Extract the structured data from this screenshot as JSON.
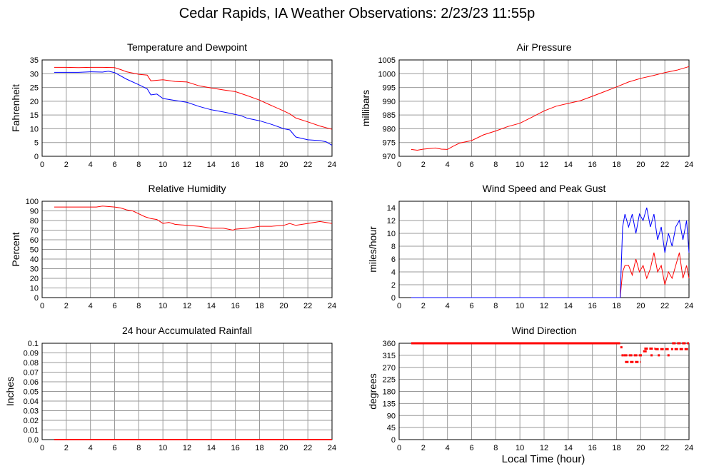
{
  "page": {
    "title": "Cedar Rapids, IA Weather Observations: 2/23/23 11:55p",
    "xlabel": "Local Time (hour)"
  },
  "colors": {
    "red": "#ff0000",
    "blue": "#0000ff",
    "grid": "#9a9a9a"
  },
  "chart_data": [
    {
      "id": "temp",
      "type": "line",
      "title": "Temperature and Dewpoint",
      "ylabel": "Fahrenheit",
      "xlim": [
        0,
        24
      ],
      "ylim": [
        0,
        35
      ],
      "xticks": [
        0,
        2,
        4,
        6,
        8,
        10,
        12,
        14,
        16,
        18,
        20,
        22,
        24
      ],
      "yticks": [
        0,
        5,
        10,
        15,
        20,
        25,
        30,
        35
      ],
      "series": [
        {
          "color": "#ff0000",
          "x": [
            1,
            2,
            3,
            4,
            5,
            6,
            6.5,
            7,
            8,
            8.7,
            9,
            9.5,
            10,
            11,
            12,
            13,
            14,
            15,
            16,
            17,
            18,
            19,
            20,
            20.5,
            21,
            22,
            23,
            24
          ],
          "y": [
            32.3,
            32.3,
            32.2,
            32.3,
            32.3,
            32.2,
            31.5,
            30.7,
            29.8,
            29.5,
            27.4,
            27.6,
            27.8,
            27.2,
            27.0,
            25.6,
            24.8,
            24.1,
            23.5,
            22.0,
            20.4,
            18.4,
            16.5,
            15.4,
            13.9,
            12.5,
            11.0,
            9.8
          ]
        },
        {
          "color": "#0000ff",
          "x": [
            1,
            2,
            3,
            4,
            5,
            5.5,
            6,
            7,
            8,
            8.7,
            9,
            9.5,
            10,
            11,
            12,
            13,
            14,
            15,
            16,
            16.5,
            17,
            18,
            19,
            20,
            20.5,
            21,
            22,
            23,
            23.5,
            24
          ],
          "y": [
            30.5,
            30.5,
            30.5,
            30.7,
            30.6,
            30.9,
            30.4,
            28.0,
            26.0,
            24.5,
            22.3,
            22.6,
            21.0,
            20.3,
            19.6,
            18.1,
            16.9,
            16.1,
            15.2,
            14.7,
            13.8,
            12.9,
            11.6,
            10.0,
            9.6,
            7.0,
            6.0,
            5.7,
            5.3,
            4.0
          ]
        }
      ]
    },
    {
      "id": "pressure",
      "type": "line",
      "title": "Air Pressure",
      "ylabel": "millibars",
      "xlim": [
        0,
        24
      ],
      "ylim": [
        970,
        1005
      ],
      "xticks": [
        0,
        2,
        4,
        6,
        8,
        10,
        12,
        14,
        16,
        18,
        20,
        22,
        24
      ],
      "yticks": [
        970,
        975,
        980,
        985,
        990,
        995,
        1000,
        1005
      ],
      "series": [
        {
          "color": "#ff0000",
          "x": [
            1,
            1.5,
            2,
            3,
            3.5,
            4,
            4.5,
            5,
            6,
            7,
            8,
            9,
            10,
            11,
            12,
            13,
            14,
            15,
            16,
            17,
            18,
            19,
            20,
            21,
            22,
            23,
            24
          ],
          "y": [
            972.5,
            972.2,
            972.6,
            973.0,
            972.6,
            972.5,
            973.7,
            974.8,
            975.7,
            977.8,
            979.2,
            980.8,
            982.0,
            984.2,
            986.5,
            988.2,
            989.2,
            990.2,
            991.8,
            993.5,
            995.2,
            997.0,
            998.3,
            999.3,
            1000.4,
            1001.3,
            1002.6
          ]
        }
      ]
    },
    {
      "id": "rh",
      "type": "line",
      "title": "Relative Humidity",
      "ylabel": "Percent",
      "xlim": [
        0,
        24
      ],
      "ylim": [
        0,
        100
      ],
      "xticks": [
        0,
        2,
        4,
        6,
        8,
        10,
        12,
        14,
        16,
        18,
        20,
        22,
        24
      ],
      "yticks": [
        0,
        10,
        20,
        30,
        40,
        50,
        60,
        70,
        80,
        90,
        100
      ],
      "series": [
        {
          "color": "#ff0000",
          "x": [
            1,
            3,
            4.5,
            5,
            6,
            6.5,
            7,
            7.5,
            8,
            8.5,
            9,
            9.5,
            10,
            10.5,
            11,
            12,
            13,
            14,
            15,
            15.8,
            16,
            17,
            18,
            19,
            20,
            20.5,
            21,
            22,
            23,
            24
          ],
          "y": [
            94,
            94,
            94,
            95,
            94,
            93,
            91,
            90,
            87,
            84,
            82,
            81,
            77,
            78,
            76,
            75,
            74,
            72,
            72,
            70,
            71,
            72,
            74,
            74,
            75,
            77,
            75,
            77,
            79,
            77
          ]
        }
      ]
    },
    {
      "id": "wind",
      "type": "line",
      "title": "Wind Speed and Peak Gust",
      "ylabel": "miles/hour",
      "xlim": [
        0,
        24
      ],
      "ylim": [
        0,
        15
      ],
      "xticks": [
        0,
        2,
        4,
        6,
        8,
        10,
        12,
        14,
        16,
        18,
        20,
        22,
        24
      ],
      "yticks": [
        0,
        2,
        4,
        6,
        8,
        10,
        12,
        14
      ],
      "series": [
        {
          "color": "#ff0000",
          "x": [
            1,
            18.3,
            18.5,
            18.7,
            19,
            19.3,
            19.6,
            19.9,
            20.2,
            20.5,
            20.8,
            21.1,
            21.4,
            21.7,
            22.0,
            22.3,
            22.6,
            22.9,
            23.2,
            23.5,
            23.8,
            24
          ],
          "y": [
            0,
            0,
            4,
            5,
            5,
            3.5,
            6,
            4,
            5,
            3,
            4.5,
            7,
            4,
            5,
            2,
            4,
            3,
            5,
            7,
            3,
            5,
            3
          ]
        },
        {
          "color": "#0000ff",
          "x": [
            1,
            18.3,
            18.5,
            18.7,
            19,
            19.3,
            19.6,
            19.9,
            20.2,
            20.5,
            20.8,
            21.1,
            21.4,
            21.7,
            22.0,
            22.3,
            22.6,
            22.9,
            23.2,
            23.5,
            23.8,
            24
          ],
          "y": [
            0,
            0,
            11,
            13,
            11,
            13,
            10,
            13,
            12,
            14,
            11,
            13,
            9,
            11,
            7,
            10,
            8,
            11,
            12,
            9,
            12,
            7
          ]
        }
      ]
    },
    {
      "id": "rain",
      "type": "line",
      "title": "24 hour Accumulated Rainfall",
      "ylabel": "Inches",
      "xlim": [
        0,
        24
      ],
      "ylim": [
        0,
        0.1
      ],
      "xticks": [
        0,
        2,
        4,
        6,
        8,
        10,
        12,
        14,
        16,
        18,
        20,
        22,
        24
      ],
      "yticks": [
        0.0,
        0.01,
        0.02,
        0.03,
        0.04,
        0.05,
        0.06,
        0.07,
        0.08,
        0.09,
        0.1
      ],
      "yticklabels": [
        "0.0",
        "0.01",
        "0.02",
        "0.03",
        "0.04",
        "0.05",
        "0.06",
        "0.07",
        "0.08",
        "0.09",
        "0.1"
      ],
      "series": [
        {
          "color": "#ff0000",
          "x": [
            1,
            24
          ],
          "y": [
            0,
            0
          ]
        }
      ]
    },
    {
      "id": "wdir",
      "type": "scatter",
      "title": "Wind Direction",
      "ylabel": "degrees",
      "xlim": [
        0,
        24
      ],
      "ylim": [
        0,
        360
      ],
      "xticks": [
        0,
        2,
        4,
        6,
        8,
        10,
        12,
        14,
        16,
        18,
        20,
        22,
        24
      ],
      "yticks": [
        0,
        45,
        90,
        135,
        180,
        225,
        270,
        315,
        360
      ],
      "segments": [
        {
          "x": [
            1,
            18.3
          ],
          "y": 360
        },
        {
          "x": [
            18.6,
            20.1
          ],
          "y": 315
        },
        {
          "x": [
            18.7,
            20.0
          ],
          "y": 290
        },
        {
          "x": [
            20.2,
            20.5
          ],
          "y": 330
        },
        {
          "x": [
            20.3,
            21.2
          ],
          "y": 340
        },
        {
          "x": [
            21.2,
            22.4
          ],
          "y": 338
        },
        {
          "x": [
            22.6,
            24.0
          ],
          "y": 360
        },
        {
          "x": [
            22.8,
            24.0
          ],
          "y": 338
        }
      ],
      "points": [
        {
          "x": 18.4,
          "y": 345
        },
        {
          "x": 18.5,
          "y": 315
        },
        {
          "x": 20.9,
          "y": 315
        },
        {
          "x": 21.5,
          "y": 315
        },
        {
          "x": 22.3,
          "y": 315
        },
        {
          "x": 22.6,
          "y": 338
        }
      ]
    }
  ]
}
